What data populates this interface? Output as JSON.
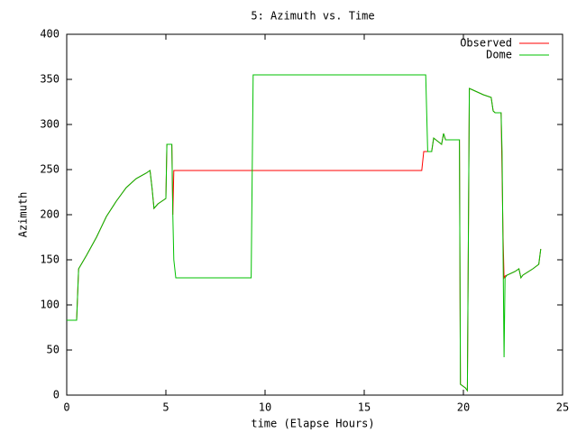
{
  "chart_data": {
    "type": "line",
    "title": "5: Azimuth vs. Time",
    "x_label": "time (Elapse Hours)",
    "y_label": "Azimuth",
    "xlim": [
      0,
      25
    ],
    "xticks": [
      0,
      5,
      10,
      15,
      20,
      25
    ],
    "ylim": [
      0,
      400
    ],
    "yticks": [
      0,
      50,
      100,
      150,
      200,
      250,
      300,
      350,
      400
    ],
    "legend": "top-right",
    "series": [
      {
        "name": "Observed",
        "color": "#ff0000",
        "x": [
          0,
          0.5,
          0.6,
          1.0,
          1.5,
          2.0,
          2.5,
          3.0,
          3.5,
          4.0,
          4.2,
          4.3,
          4.4,
          4.6,
          4.8,
          5.0,
          5.05,
          5.3,
          5.35,
          5.4,
          17.9,
          18.0,
          18.2,
          18.4,
          18.5,
          18.9,
          19.0,
          19.1,
          19.8,
          19.85,
          20.1,
          20.2,
          20.3,
          20.5,
          21.0,
          21.4,
          21.5,
          21.6,
          21.9,
          21.95,
          22.0,
          22.05,
          22.1,
          22.6,
          22.8,
          22.9,
          23.0,
          23.5,
          23.8,
          23.9
        ],
        "values": [
          83,
          83,
          140,
          155,
          175,
          198,
          215,
          230,
          240,
          246,
          249,
          230,
          207,
          212,
          215,
          218,
          278,
          278,
          200,
          249,
          249,
          270,
          270,
          270,
          285,
          278,
          290,
          283,
          283,
          12,
          8,
          5,
          340,
          338,
          333,
          330,
          315,
          313,
          313,
          245,
          175,
          130,
          132,
          137,
          140,
          130,
          133,
          140,
          145,
          162
        ]
      },
      {
        "name": "Dome",
        "color": "#00c000",
        "x": [
          0,
          0.5,
          0.6,
          1.0,
          1.5,
          2.0,
          2.5,
          3.0,
          3.5,
          4.0,
          4.2,
          4.3,
          4.4,
          4.6,
          4.8,
          5.0,
          5.05,
          5.3,
          5.35,
          5.4,
          5.5,
          9.3,
          9.4,
          18.1,
          18.2,
          18.4,
          18.5,
          18.9,
          19.0,
          19.1,
          19.8,
          19.85,
          20.1,
          20.2,
          20.3,
          20.5,
          21.0,
          21.4,
          21.5,
          21.6,
          21.9,
          21.95,
          22.05,
          22.1,
          22.2,
          22.6,
          22.8,
          22.9,
          23.0,
          23.5,
          23.8,
          23.9
        ],
        "values": [
          83,
          83,
          140,
          155,
          175,
          198,
          215,
          230,
          240,
          246,
          249,
          230,
          207,
          212,
          215,
          218,
          278,
          278,
          200,
          150,
          130,
          130,
          355,
          355,
          270,
          270,
          285,
          278,
          290,
          283,
          283,
          12,
          8,
          5,
          340,
          338,
          333,
          330,
          315,
          313,
          313,
          270,
          42,
          130,
          133,
          137,
          140,
          130,
          133,
          140,
          145,
          162
        ]
      }
    ]
  }
}
